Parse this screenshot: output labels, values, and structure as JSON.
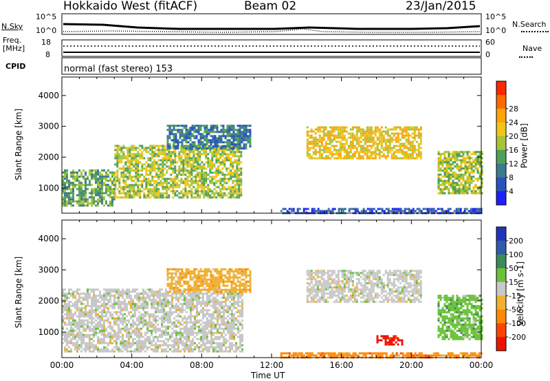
{
  "header": {
    "title": "Hokkaido West (fitACF)",
    "beam": "Beam 02",
    "date": "23/Jan/2015"
  },
  "noise_panel": {
    "left_label": "N.Sky",
    "left_ticks": [
      "10^5",
      "10^0"
    ],
    "right_ticks": [
      "10^5",
      "10^0"
    ],
    "right_label": "N.Search"
  },
  "freq_panel": {
    "left_label_1": "Freq.",
    "left_label_2": "[MHz]",
    "left_ticks": [
      "18",
      "8"
    ],
    "right_ticks": [
      "60",
      "0"
    ],
    "right_label": "Nave"
  },
  "cpid_panel": {
    "label": "CPID",
    "mode_text": "normal (fast stereo) 153"
  },
  "chart_data": [
    {
      "type": "heatmap",
      "panel": "power",
      "ylabel": "Slant Range [km]",
      "ylim": [
        180,
        4600
      ],
      "yticks": [
        1000,
        2000,
        3000,
        4000
      ],
      "xlim": [
        0,
        24
      ],
      "colorbar": {
        "label": "Power [dB]",
        "ticks": [
          "4",
          "8",
          "12",
          "16",
          "20",
          "24",
          "28"
        ],
        "colors": [
          "#1e1eff",
          "#2a52c0",
          "#3c7a8e",
          "#4fa058",
          "#a7c436",
          "#f2c516",
          "#ffa308",
          "#ff6a00",
          "#ff2600"
        ]
      },
      "regions": [
        {
          "t0": 0.0,
          "t1": 3.0,
          "r0": 400,
          "r1": 1600,
          "level": 3
        },
        {
          "t0": 3.0,
          "t1": 10.3,
          "r0": 700,
          "r1": 2400,
          "level": 4
        },
        {
          "t0": 6.0,
          "t1": 10.8,
          "r0": 2300,
          "r1": 3050,
          "level": 2
        },
        {
          "t0": 14.0,
          "t1": 20.5,
          "r0": 1950,
          "r1": 3000,
          "level": 5
        },
        {
          "t0": 21.5,
          "t1": 24.0,
          "r0": 800,
          "r1": 2200,
          "level": 4
        },
        {
          "t0": 12.5,
          "t1": 24.0,
          "r0": 200,
          "r1": 350,
          "level": 1
        }
      ]
    },
    {
      "type": "heatmap",
      "panel": "velocity",
      "ylabel": "Slant Range [km]",
      "ylim": [
        180,
        4600
      ],
      "yticks": [
        1000,
        2000,
        3000,
        4000
      ],
      "xlim": [
        0,
        24
      ],
      "xticks": [
        "00:00",
        "04:00",
        "08:00",
        "12:00",
        "16:00",
        "20:00",
        "00:00"
      ],
      "xlabel": "Time UT",
      "colorbar": {
        "label": "Velocity [m s-1]",
        "ticks": [
          "200",
          "100",
          "50",
          "15",
          "-15",
          "-50",
          "-100",
          "-200"
        ],
        "colors": [
          "#2233bb",
          "#2f5ba8",
          "#3a8a5a",
          "#6cc13a",
          "#c8c8c8",
          "#f0b030",
          "#ff8800",
          "#ff4400",
          "#ee1100"
        ]
      },
      "regions": [
        {
          "t0": 0.0,
          "t1": 10.3,
          "r0": 400,
          "r1": 2400,
          "level": 4
        },
        {
          "t0": 6.0,
          "t1": 10.8,
          "r0": 2300,
          "r1": 3050,
          "level": 5
        },
        {
          "t0": 14.0,
          "t1": 20.5,
          "r0": 1950,
          "r1": 3000,
          "level": 4
        },
        {
          "t0": 21.5,
          "t1": 24.0,
          "r0": 800,
          "r1": 2200,
          "level": 3
        },
        {
          "t0": 12.5,
          "t1": 24.0,
          "r0": 200,
          "r1": 350,
          "level": 6
        },
        {
          "t0": 18.0,
          "t1": 19.5,
          "r0": 600,
          "r1": 900,
          "level": 8
        }
      ]
    }
  ]
}
